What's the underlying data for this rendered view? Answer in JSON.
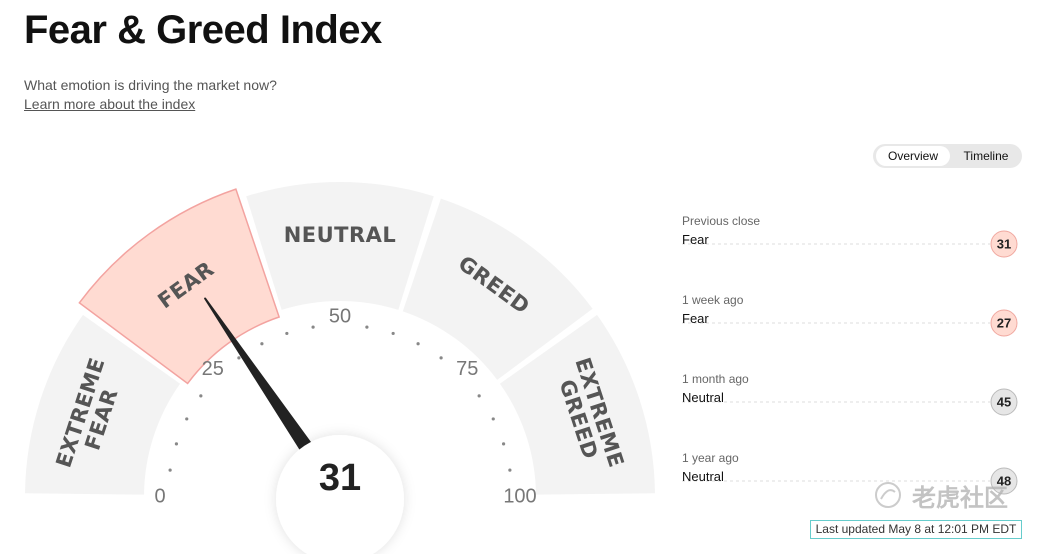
{
  "header": {
    "title": "Fear & Greed Index",
    "subtitle": "What emotion is driving the market now?",
    "link": "Learn more about the index"
  },
  "tabs": [
    "Overview",
    "Timeline"
  ],
  "gauge": {
    "value": 31,
    "min": 0,
    "max": 100,
    "ticks": [
      0,
      25,
      50,
      75,
      100
    ],
    "segments": [
      "EXTREME FEAR",
      "FEAR",
      "NEUTRAL",
      "GREED",
      "EXTREME GREED"
    ]
  },
  "history": [
    {
      "period": "Previous close",
      "label": "Fear",
      "value": 31,
      "color": "#ffdbd2"
    },
    {
      "period": "1 week ago",
      "label": "Fear",
      "value": 27,
      "color": "#ffdbd2"
    },
    {
      "period": "1 month ago",
      "label": "Neutral",
      "value": 45,
      "color": "#e6e6e6"
    },
    {
      "period": "1 year ago",
      "label": "Neutral",
      "value": 48,
      "color": "#e6e6e6"
    }
  ],
  "footer": "Last updated May 8 at 12:01 PM EDT",
  "watermark": "老虎社区"
}
